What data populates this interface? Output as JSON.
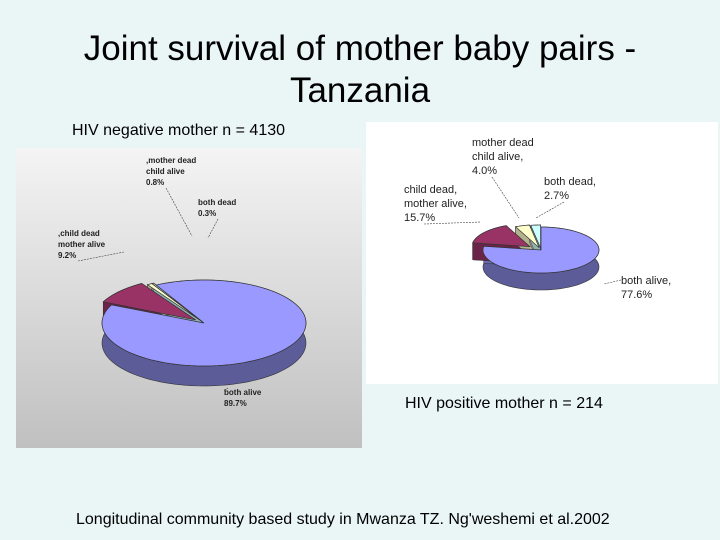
{
  "slide": {
    "title_line1": "Joint survival of mother baby pairs -",
    "title_line2": "Tanzania",
    "footer": "Longitudinal community based study in Mwanza TZ. Ng'weshemi et al.2002"
  },
  "chart_data": [
    {
      "type": "pie",
      "caption": "HIV negative mother n = 4130",
      "slices": [
        {
          "label_lines": [
            "both alive",
            "89.7%"
          ],
          "value": 89.7,
          "color": "#9999ff"
        },
        {
          "label_lines": [
            ",child dead",
            "mother alive",
            "9.2%"
          ],
          "value": 9.2,
          "color": "#993366"
        },
        {
          "label_lines": [
            ",mother dead",
            "child alive",
            "0.8%"
          ],
          "value": 0.8,
          "color": "#ffffcc"
        },
        {
          "label_lines": [
            "both dead",
            "0.3%"
          ],
          "value": 0.3,
          "color": "#ccffff"
        }
      ],
      "background": "#c0c0c0"
    },
    {
      "type": "pie",
      "caption": "HIV positive mother n = 214",
      "slices": [
        {
          "label_lines": [
            "both alive,",
            "77.6%"
          ],
          "value": 77.6,
          "color": "#9999ff"
        },
        {
          "label_lines": [
            "child dead,",
            "mother alive,",
            "15.7%"
          ],
          "value": 15.7,
          "color": "#993366"
        },
        {
          "label_lines": [
            "mother dead",
            "child alive,",
            "4.0%"
          ],
          "value": 4.0,
          "color": "#ffffcc"
        },
        {
          "label_lines": [
            "both dead,",
            "2.7%"
          ],
          "value": 2.7,
          "color": "#ccffff"
        }
      ],
      "background": "#ffffff"
    }
  ]
}
